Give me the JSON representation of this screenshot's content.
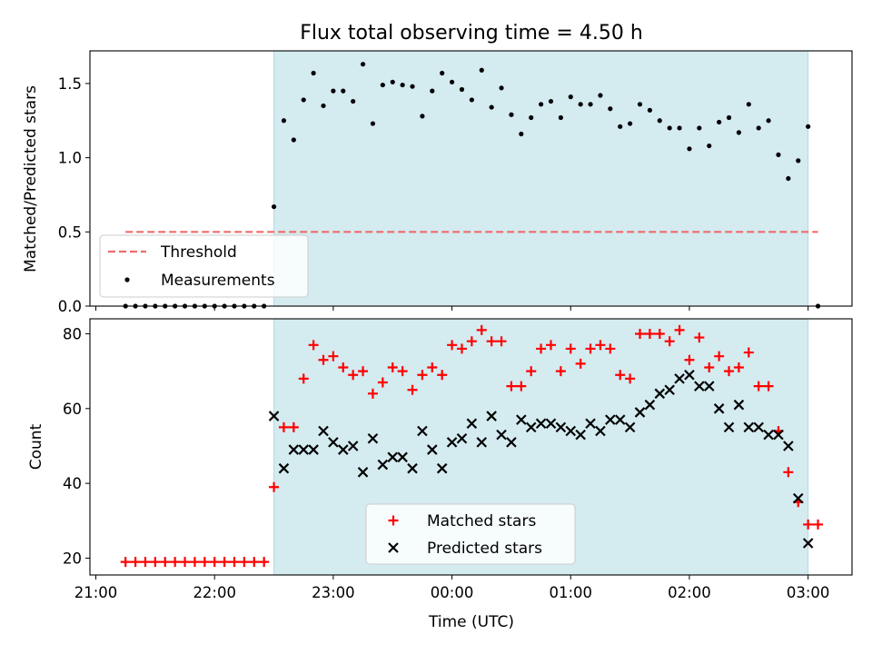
{
  "chart_data": [
    {
      "type": "scatter",
      "title": "Flux total observing time = 4.50 h",
      "xlabel": "",
      "ylabel": "Matched/Predicted stars",
      "ylim": [
        0,
        1.72
      ],
      "yticks": [
        "0.0",
        "0.5",
        "1.0",
        "1.5"
      ],
      "x_unit": "hours since 21:00 UTC",
      "xlim": [
        -0.05,
        6.37
      ],
      "shaded_region": {
        "from": "22:30",
        "to": "03:00",
        "color": "#d4ebf0"
      },
      "legend_position": "lower-left",
      "threshold": {
        "name": "Threshold",
        "value": 0.5,
        "x_from": "21:15",
        "x_to": "03:05",
        "color": "#f26b6b"
      },
      "series": [
        {
          "name": "Measurements",
          "color": "#000000",
          "marker": "dot",
          "x": [
            "21:15",
            "21:20",
            "21:25",
            "21:30",
            "21:35",
            "21:40",
            "21:45",
            "21:50",
            "21:55",
            "22:00",
            "22:05",
            "22:10",
            "22:15",
            "22:20",
            "22:25",
            "22:30",
            "22:35",
            "22:40",
            "22:45",
            "22:50",
            "22:55",
            "23:00",
            "23:05",
            "23:10",
            "23:15",
            "23:20",
            "23:25",
            "23:30",
            "23:35",
            "23:40",
            "23:45",
            "23:50",
            "23:55",
            "00:00",
            "00:05",
            "00:10",
            "00:15",
            "00:20",
            "00:25",
            "00:30",
            "00:35",
            "00:40",
            "00:45",
            "00:50",
            "00:55",
            "01:00",
            "01:05",
            "01:10",
            "01:15",
            "01:20",
            "01:25",
            "01:30",
            "01:35",
            "01:40",
            "01:45",
            "01:50",
            "01:55",
            "02:00",
            "02:05",
            "02:10",
            "02:15",
            "02:20",
            "02:25",
            "02:30",
            "02:35",
            "02:40",
            "02:45",
            "02:50",
            "02:55",
            "03:00",
            "03:05"
          ],
          "y": [
            0,
            0,
            0,
            0,
            0,
            0,
            0,
            0,
            0,
            0,
            0,
            0,
            0,
            0,
            0,
            0.67,
            1.25,
            1.12,
            1.39,
            1.57,
            1.35,
            1.45,
            1.45,
            1.38,
            1.63,
            1.23,
            1.49,
            1.51,
            1.49,
            1.48,
            1.28,
            1.45,
            1.57,
            1.51,
            1.46,
            1.39,
            1.59,
            1.34,
            1.47,
            1.29,
            1.16,
            1.27,
            1.36,
            1.38,
            1.27,
            1.41,
            1.36,
            1.36,
            1.42,
            1.33,
            1.21,
            1.23,
            1.36,
            1.32,
            1.25,
            1.2,
            1.2,
            1.06,
            1.2,
            1.08,
            1.24,
            1.27,
            1.17,
            1.36,
            1.2,
            1.25,
            1.02,
            0.86,
            0.98,
            1.21,
            0
          ]
        }
      ]
    },
    {
      "type": "scatter",
      "title": "",
      "xlabel": "Time (UTC)",
      "ylabel": "Count",
      "ylim": [
        15.5,
        84
      ],
      "yticks": [
        "20",
        "40",
        "60",
        "80"
      ],
      "x_unit": "hours since 21:00 UTC",
      "xlim": [
        -0.05,
        6.37
      ],
      "xticks": [
        "21:00",
        "22:00",
        "23:00",
        "00:00",
        "01:00",
        "02:00",
        "03:00"
      ],
      "shaded_region": {
        "from": "22:30",
        "to": "03:00",
        "color": "#d4ebf0"
      },
      "legend_position": "lower-center",
      "series": [
        {
          "name": "Matched stars",
          "color": "#ff0000",
          "marker": "plus",
          "x": [
            "21:15",
            "21:20",
            "21:25",
            "21:30",
            "21:35",
            "21:40",
            "21:45",
            "21:50",
            "21:55",
            "22:00",
            "22:05",
            "22:10",
            "22:15",
            "22:20",
            "22:25",
            "22:30",
            "22:35",
            "22:40",
            "22:45",
            "22:50",
            "22:55",
            "23:00",
            "23:05",
            "23:10",
            "23:15",
            "23:20",
            "23:25",
            "23:30",
            "23:35",
            "23:40",
            "23:45",
            "23:50",
            "23:55",
            "00:00",
            "00:05",
            "00:10",
            "00:15",
            "00:20",
            "00:25",
            "00:30",
            "00:35",
            "00:40",
            "00:45",
            "00:50",
            "00:55",
            "01:00",
            "01:05",
            "01:10",
            "01:15",
            "01:20",
            "01:25",
            "01:30",
            "01:35",
            "01:40",
            "01:45",
            "01:50",
            "01:55",
            "02:00",
            "02:05",
            "02:10",
            "02:15",
            "02:20",
            "02:25",
            "02:30",
            "02:35",
            "02:40",
            "02:45",
            "02:50",
            "02:55",
            "03:00",
            "03:05"
          ],
          "y": [
            19,
            19,
            19,
            19,
            19,
            19,
            19,
            19,
            19,
            19,
            19,
            19,
            19,
            19,
            19,
            39,
            55,
            55,
            68,
            77,
            73,
            74,
            71,
            69,
            70,
            64,
            67,
            71,
            70,
            65,
            69,
            71,
            69,
            77,
            76,
            78,
            81,
            78,
            78,
            66,
            66,
            70,
            76,
            77,
            70,
            76,
            72,
            76,
            77,
            76,
            69,
            68,
            80,
            80,
            80,
            78,
            81,
            73,
            79,
            71,
            74,
            70,
            71,
            75,
            66,
            66,
            54,
            43,
            35,
            29,
            29
          ]
        },
        {
          "name": "Predicted stars",
          "color": "#000000",
          "marker": "x",
          "x": [
            "22:30",
            "22:35",
            "22:40",
            "22:45",
            "22:50",
            "22:55",
            "23:00",
            "23:05",
            "23:10",
            "23:15",
            "23:20",
            "23:25",
            "23:30",
            "23:35",
            "23:40",
            "23:45",
            "23:50",
            "23:55",
            "00:00",
            "00:05",
            "00:10",
            "00:15",
            "00:20",
            "00:25",
            "00:30",
            "00:35",
            "00:40",
            "00:45",
            "00:50",
            "00:55",
            "01:00",
            "01:05",
            "01:10",
            "01:15",
            "01:20",
            "01:25",
            "01:30",
            "01:35",
            "01:40",
            "01:45",
            "01:50",
            "01:55",
            "02:00",
            "02:05",
            "02:10",
            "02:15",
            "02:20",
            "02:25",
            "02:30",
            "02:35",
            "02:40",
            "02:45",
            "02:50",
            "02:55",
            "03:00"
          ],
          "y": [
            58,
            44,
            49,
            49,
            49,
            54,
            51,
            49,
            50,
            43,
            52,
            45,
            47,
            47,
            44,
            54,
            49,
            44,
            51,
            52,
            56,
            51,
            58,
            53,
            51,
            57,
            55,
            56,
            56,
            55,
            54,
            53,
            56,
            54,
            57,
            57,
            55,
            59,
            61,
            64,
            65,
            68,
            69,
            66,
            66,
            60,
            55,
            61,
            55,
            55,
            53,
            53,
            50,
            36,
            24
          ]
        }
      ]
    }
  ]
}
